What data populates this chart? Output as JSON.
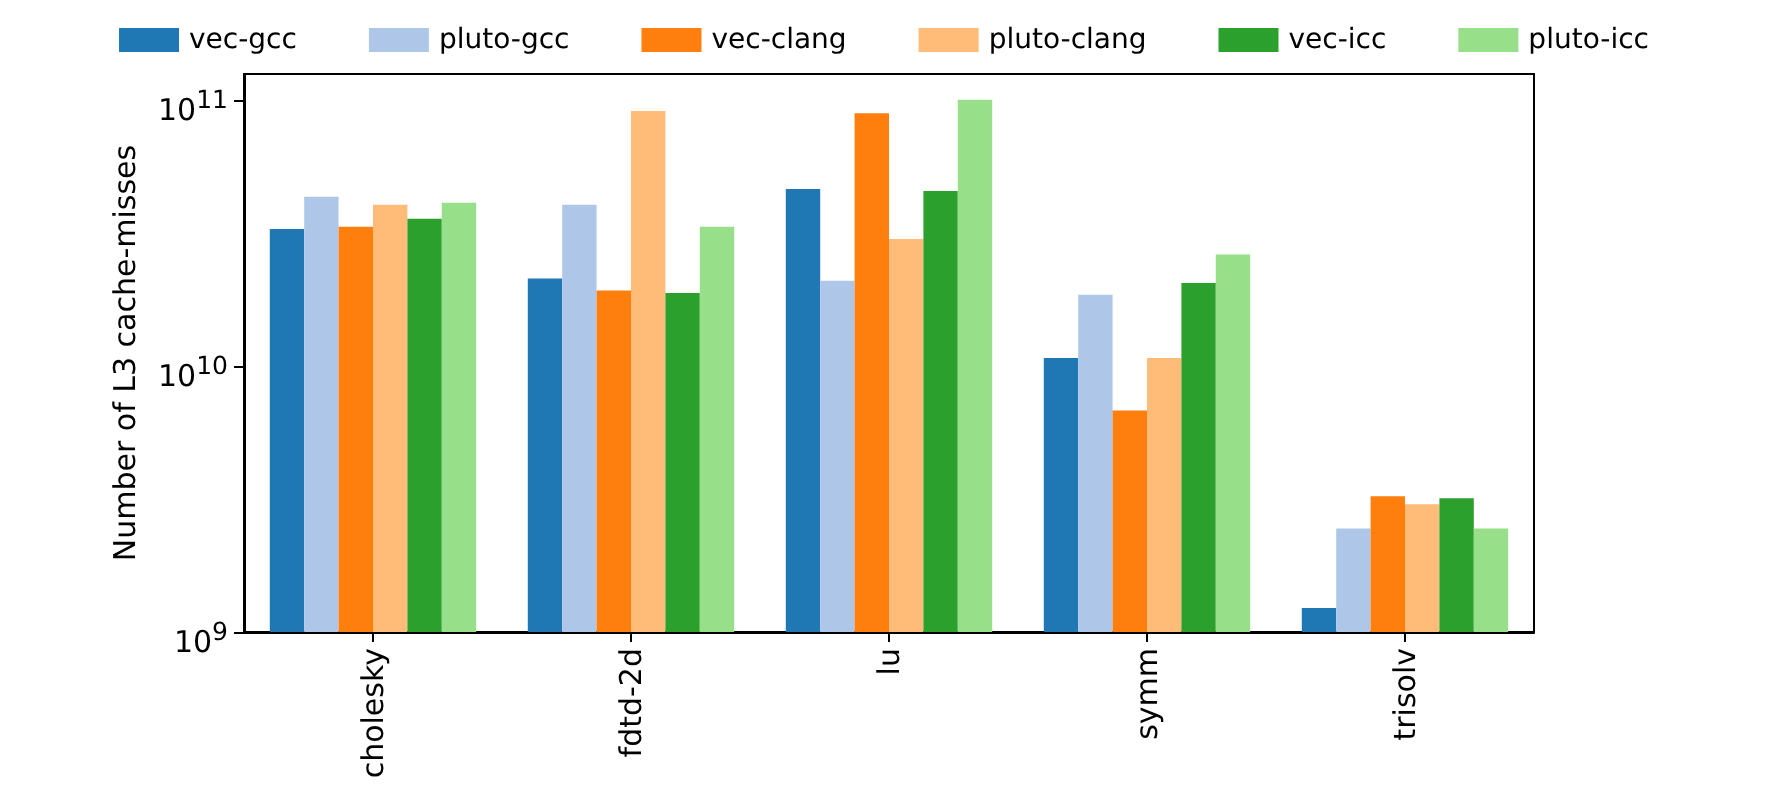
{
  "chart_data": {
    "type": "bar",
    "ylabel": "Number of L3 cache-misses",
    "categories": [
      "cholesky",
      "fdtd-2d",
      "lu",
      "symm",
      "trisolv"
    ],
    "log": true,
    "ylim": [
      1000000000.0,
      125000000000.0
    ],
    "yticks": [
      {
        "value": 1000000000.0,
        "label": "10$^{9}$"
      },
      {
        "value": 10000000000.0,
        "label": "10$^{10}$"
      },
      {
        "value": 100000000000.0,
        "label": "10$^{11}$"
      }
    ],
    "legend": "top",
    "grid": false,
    "series": [
      {
        "name": "vec-gcc",
        "color": "#1f77b4",
        "values": [
          32700000000.0,
          21300000000.0,
          46200000000.0,
          10700000000.0,
          1230000000.0
        ]
      },
      {
        "name": "pluto-gcc",
        "color": "#aec7e8",
        "values": [
          43200000000.0,
          40300000000.0,
          20900000000.0,
          18500000000.0,
          2450000000.0
        ]
      },
      {
        "name": "vec-clang",
        "color": "#ff7f0e",
        "values": [
          33300000000.0,
          19200000000.0,
          89100000000.0,
          6800000000.0,
          3240000000.0
        ]
      },
      {
        "name": "pluto-clang",
        "color": "#ffbb78",
        "values": [
          40300000000.0,
          90700000000.0,
          30000000000.0,
          10700000000.0,
          3020000000.0
        ]
      },
      {
        "name": "vec-icc",
        "color": "#2ca02c",
        "values": [
          35700000000.0,
          18800000000.0,
          45400000000.0,
          20500000000.0,
          3180000000.0
        ]
      },
      {
        "name": "pluto-icc",
        "color": "#98df8a",
        "values": [
          41000000000.0,
          33300000000.0,
          100000000000.0,
          26200000000.0,
          2450000000.0
        ]
      }
    ]
  }
}
